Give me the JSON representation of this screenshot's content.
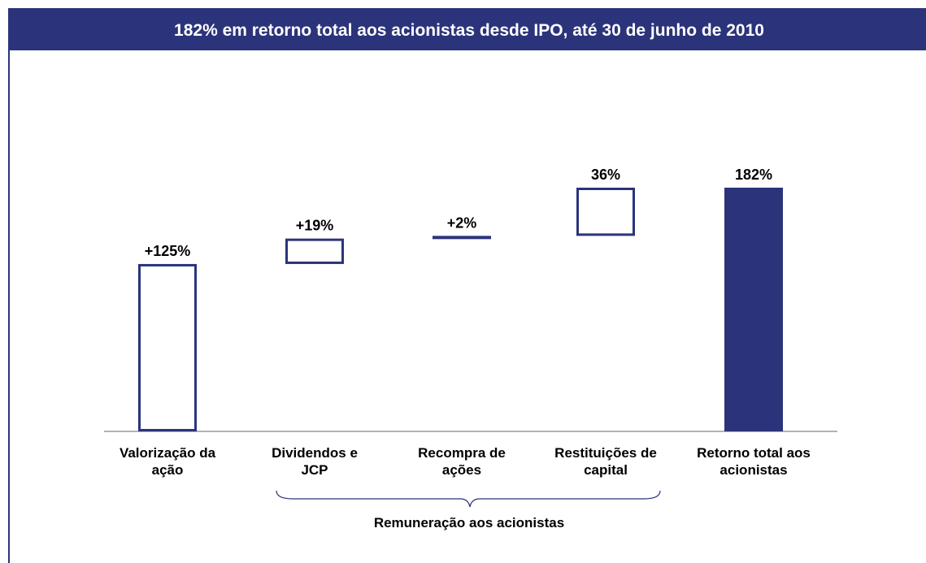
{
  "chart_data": {
    "type": "waterfall",
    "title": "182% em retorno total aos acionistas desde IPO, até 30 de junho de 2010",
    "categories": [
      "Valorização da ação",
      "Dividendos e JCP",
      "Recompra de ações",
      "Restituições de capital",
      "Retorno total aos acionistas"
    ],
    "values": [
      125,
      19,
      2,
      36,
      182
    ],
    "value_labels": [
      "+125%",
      "+19%",
      "+2%",
      "36%",
      "182%"
    ],
    "measures": [
      "relative",
      "relative",
      "relative",
      "relative",
      "total"
    ],
    "color": "#2b347a",
    "annotation": "Remuneração aos acionistas"
  }
}
